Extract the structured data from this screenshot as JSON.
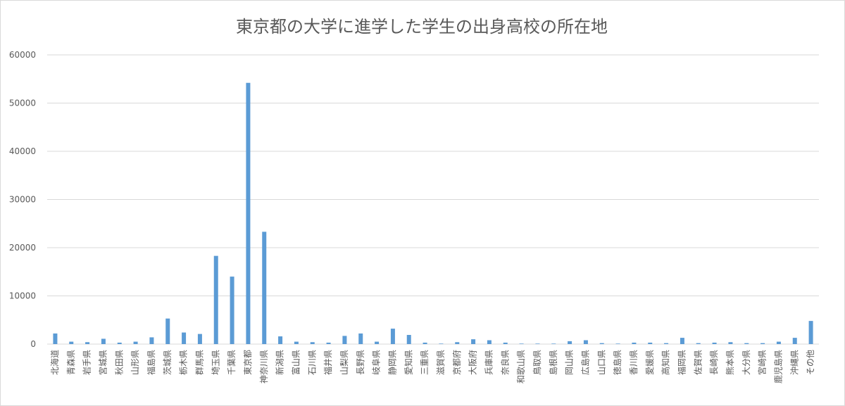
{
  "chart_data": {
    "type": "bar",
    "title": "東京都の大学に進学した学生の出身高校の所在地",
    "xlabel": "",
    "ylabel": "",
    "ylim": [
      0,
      60000
    ],
    "yticks": [
      0,
      10000,
      20000,
      30000,
      40000,
      50000,
      60000
    ],
    "ytick_labels": [
      "0",
      "10000",
      "20000",
      "30000",
      "40000",
      "50000",
      "60000"
    ],
    "grid": true,
    "legend": "none",
    "bar_color": "#5b9bd5",
    "categories": [
      "北海道",
      "青森県",
      "岩手県",
      "宮城県",
      "秋田県",
      "山形県",
      "福島県",
      "茨城県",
      "栃木県",
      "群馬県",
      "埼玉県",
      "千葉県",
      "東京都",
      "神奈川県",
      "新潟県",
      "富山県",
      "石川県",
      "福井県",
      "山梨県",
      "長野県",
      "岐阜県",
      "静岡県",
      "愛知県",
      "三重県",
      "滋賀県",
      "京都府",
      "大阪府",
      "兵庫県",
      "奈良県",
      "和歌山県",
      "鳥取県",
      "島根県",
      "岡山県",
      "広島県",
      "山口県",
      "徳島県",
      "香川県",
      "愛媛県",
      "高知県",
      "福岡県",
      "佐賀県",
      "長崎県",
      "熊本県",
      "大分県",
      "宮崎県",
      "鹿児島県",
      "沖縄県",
      "その他"
    ],
    "values": [
      2200,
      500,
      400,
      1100,
      300,
      500,
      1400,
      5300,
      2400,
      2100,
      18300,
      14000,
      54200,
      23300,
      1600,
      500,
      400,
      300,
      1700,
      2200,
      500,
      3200,
      1900,
      300,
      100,
      400,
      1000,
      800,
      300,
      100,
      100,
      100,
      600,
      800,
      200,
      100,
      300,
      300,
      200,
      1300,
      200,
      300,
      400,
      200,
      200,
      500,
      1300,
      4800
    ]
  }
}
